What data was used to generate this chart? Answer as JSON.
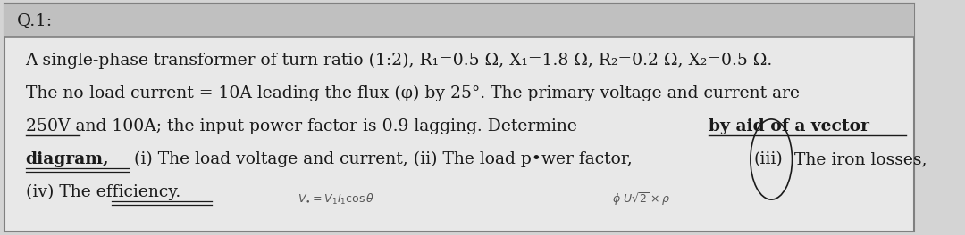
{
  "bg_color": "#d4d4d4",
  "header_bg": "#c0c0c0",
  "header_text": "Q.1:",
  "body_bg": "#e8e8e8",
  "border_color": "#808080",
  "text_color": "#1a1a1a",
  "fig_width": 10.8,
  "fig_height": 2.64,
  "line1": "A single-phase transformer of turn ratio (1:2), R₁=0.5 Ω, X₁=1.8 Ω, R₂=0.2 Ω, X₂=0.5 Ω.",
  "line2": "The no-load current = 10A leading the flux (φ) by 25°. The primary voltage and current are",
  "line3_a": "250V and 100A; the input power factor is 0.9 lagging. Determine ",
  "line3_b": "by aid of a vector",
  "line4_a": "diagram, (i) The load voltage and current, (ii) The load p",
  "line4_bullet": "•",
  "line4_b": "wer factor, ",
  "line4_c": "iii",
  "line4_d": " The iron losses,",
  "line5": "(iv) The efficiency.",
  "hw_left": "V. = V₁I₁cosθ",
  "hw_right": "ϕ  U √2 × ρ"
}
